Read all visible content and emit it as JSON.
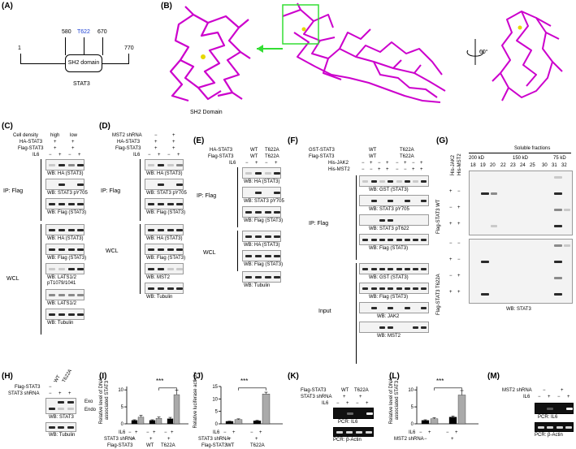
{
  "panels": {
    "A": "(A)",
    "B": "(B)",
    "C": "(C)",
    "D": "(D)",
    "E": "(E)",
    "F": "(F)",
    "G": "(G)",
    "H": "(H)",
    "I": "(I)",
    "J": "(J)",
    "K": "(K)",
    "L": "(L)",
    "M": "(M)"
  },
  "panelA": {
    "ticks": [
      "1",
      "580",
      "T622",
      "670",
      "770"
    ],
    "domain": "SH2 domain",
    "protein": "STAT3",
    "colors": {
      "T622": "#1a3fd4"
    }
  },
  "panelB": {
    "zoom_label": "SH2 Domain",
    "rotation": "60°",
    "colors": {
      "structure": "#cc00cc",
      "zoom_box": "#33dd33",
      "residue": "#e6d800"
    }
  },
  "panelC": {
    "header_rows": [
      {
        "label": "Cell density",
        "values": [
          "high",
          "low"
        ]
      },
      {
        "label": "HA-STAT3",
        "values": [
          "+",
          "+"
        ]
      },
      {
        "label": "Flag-STAT3",
        "values": [
          "+",
          "+"
        ]
      },
      {
        "label": "IL6",
        "values": [
          "−",
          "+",
          "−",
          "+"
        ]
      }
    ],
    "ip": "IP: Flag",
    "wcl": "WCL",
    "blots": [
      "WB: HA (STAT3)",
      "WB: STAT3 pY705",
      "WB: Flag (STAT3)",
      "WB: HA (STAT3)",
      "WB: Flag (STAT3)",
      "WB: LATS1/2 pT1079/1041",
      "WB: LATS1/2",
      "WB: Tubulin"
    ]
  },
  "panelD": {
    "header_rows": [
      {
        "label": "MST2 shRNA",
        "values": [
          "−",
          "+"
        ]
      },
      {
        "label": "HA-STAT3",
        "values": [
          "+",
          "+"
        ]
      },
      {
        "label": "Flag-STAT3",
        "values": [
          "+",
          "+"
        ]
      },
      {
        "label": "IL6",
        "values": [
          "−",
          "+",
          "−",
          "+"
        ]
      }
    ],
    "ip": "IP: Flag",
    "wcl": "WCL",
    "blots": [
      "WB: HA (STAT3)",
      "WB: STAT3 pY705",
      "WB: Flag (STAT3)",
      "WB: HA (STAT3)",
      "WB: Flag (STAT3)",
      "WB: MST2",
      "WB: Tubulin"
    ]
  },
  "panelE": {
    "header_rows": [
      {
        "label": "HA-STAT3",
        "values": [
          "WT",
          "T622A"
        ]
      },
      {
        "label": "Flag-STAT3",
        "values": [
          "WT",
          "T622A"
        ]
      },
      {
        "label": "IL6",
        "values": [
          "−",
          "+",
          "−",
          "+"
        ]
      }
    ],
    "ip": "IP: Flag",
    "wcl": "WCL",
    "blots": [
      "WB: HA (STAT3)",
      "WB: STAT3 pY705",
      "WB: Flag (STAT3)",
      "WB: HA (STAT3)",
      "WB: Flag (STAT3)",
      "WB: Tubulin"
    ]
  },
  "panelF": {
    "header_rows": [
      {
        "label": "GST-STAT3",
        "values": [
          "WT",
          "T622A"
        ]
      },
      {
        "label": "Flag-STAT3",
        "values": [
          "WT",
          "T622A"
        ]
      },
      {
        "label": "His-JAK2",
        "values": [
          "−",
          "+",
          "−",
          "+",
          "−",
          "+",
          "−",
          "+"
        ]
      },
      {
        "label": "His-MST2",
        "values": [
          "−",
          "−",
          "+",
          "+",
          "−",
          "−",
          "+",
          "+"
        ]
      }
    ],
    "ip": "IP: Flag",
    "input": "Input",
    "blots": [
      "WB: GST (STAT3)",
      "WB: STAT3 pY705",
      "WB: STAT3 pT622",
      "WB: Flag (STAT3)",
      "WB: GST (STAT3)",
      "WB: Flag (STAT3)",
      "WB: JAK2",
      "WB: MST2"
    ]
  },
  "panelG": {
    "col_headers": [
      "His-JAK2",
      "His-MST2"
    ],
    "title": "Soluble fractions",
    "markers": [
      "200 kD",
      "150 kD",
      "75 kD"
    ],
    "fractions": [
      "18",
      "19",
      "20",
      "22",
      "23",
      "24",
      "25",
      "30",
      "31",
      "32"
    ],
    "group_wt": "Flag-STAT3 WT",
    "group_mut": "Flag-STAT3 T622A",
    "row_signs": [
      [
        "−",
        "−"
      ],
      [
        "+",
        "−"
      ],
      [
        "−",
        "+"
      ],
      [
        "+",
        "+"
      ],
      [
        "−",
        "−"
      ],
      [
        "+",
        "−"
      ],
      [
        "−",
        "+"
      ],
      [
        "+",
        "+"
      ]
    ],
    "blot": "WB: STAT3"
  },
  "panelH": {
    "header_rows": [
      {
        "label": "Flag-STAT3",
        "values": [
          "−",
          "WT",
          "T622A"
        ]
      },
      {
        "label": "STAT3 shRNA",
        "values": [
          "−",
          "+",
          "+"
        ]
      }
    ],
    "exo": "Exo",
    "endo": "Endo",
    "blots": [
      "WB: STAT3",
      "WB: Tubulin"
    ]
  },
  "panelI": {
    "sig": "***",
    "xrows": [
      {
        "label": "IL6",
        "values": [
          "−",
          "+",
          "−",
          "+",
          "−",
          "+"
        ]
      },
      {
        "label": "STAT3 shRNA",
        "values": [
          "+",
          "+",
          "+"
        ]
      },
      {
        "label": "Flag-STAT3",
        "values": [
          "WT",
          "T622A"
        ]
      }
    ]
  },
  "panelJ": {
    "sig": "***",
    "xrows": [
      {
        "label": "IL6",
        "values": [
          "−",
          "+",
          "−",
          "+"
        ]
      },
      {
        "label": "STAT3 shRNA",
        "values": [
          "+",
          "+"
        ]
      },
      {
        "label": "Flag-STAT3",
        "values": [
          "WT",
          "T622A"
        ]
      }
    ]
  },
  "panelK": {
    "header_rows": [
      {
        "label": "Flag-STAT3",
        "values": [
          "WT",
          "T622A"
        ]
      },
      {
        "label": "STAT3 shRNA",
        "values": [
          "+",
          "+"
        ]
      },
      {
        "label": "IL6",
        "values": [
          "−",
          "+",
          "−",
          "+"
        ]
      }
    ],
    "blots": [
      "PCR: IL6",
      "PCR: β-Actin"
    ]
  },
  "panelL": {
    "sig": "***",
    "xrows": [
      {
        "label": "IL6",
        "values": [
          "−",
          "+",
          "−",
          "+"
        ]
      },
      {
        "label": "MST2 shRNA",
        "values": [
          "−",
          "+"
        ]
      }
    ]
  },
  "panelM": {
    "header_rows": [
      {
        "label": "MST2 shRNA",
        "values": [
          "−",
          "+"
        ]
      },
      {
        "label": "IL6",
        "values": [
          "−",
          "+",
          "−",
          "+"
        ]
      }
    ],
    "blots": [
      "PCR: IL6",
      "PCR: β-Actin"
    ]
  },
  "chart_data": [
    {
      "type": "bar",
      "panel": "I",
      "categories": [
        "IL6 −",
        "IL6 +",
        "IL6 −",
        "IL6 +",
        "IL6 −",
        "IL6 +"
      ],
      "values": [
        1.0,
        2.0,
        1.0,
        1.6,
        1.5,
        8.6
      ],
      "errors": [
        0.2,
        0.5,
        0.2,
        0.4,
        0.4,
        1.3
      ],
      "colors": [
        "#000000",
        "#aaaaaa",
        "#000000",
        "#aaaaaa",
        "#000000",
        "#aaaaaa"
      ],
      "ylabel": "Relative level of DNA-associated STAT3",
      "yticks": [
        0,
        5,
        10
      ],
      "ylim": [
        0,
        11
      ]
    },
    {
      "type": "bar",
      "panel": "J",
      "categories": [
        "IL6 −",
        "IL6 +",
        "IL6 −",
        "IL6 +"
      ],
      "values": [
        1.0,
        1.7,
        1.2,
        12.0
      ],
      "errors": [
        0.1,
        0.3,
        0.2,
        0.7
      ],
      "colors": [
        "#000000",
        "#aaaaaa",
        "#000000",
        "#aaaaaa"
      ],
      "ylabel": "Relative luciferase activity",
      "yticks": [
        0,
        5,
        10,
        15
      ],
      "ylim": [
        0,
        15
      ]
    },
    {
      "type": "bar",
      "panel": "L",
      "categories": [
        "IL6 −",
        "IL6 +",
        "IL6 −",
        "IL6 +"
      ],
      "values": [
        1.0,
        1.5,
        2.0,
        8.5
      ],
      "errors": [
        0.2,
        0.3,
        0.3,
        1.3
      ],
      "colors": [
        "#000000",
        "#aaaaaa",
        "#000000",
        "#aaaaaa"
      ],
      "ylabel": "Relative level of DNA-associated STAT3",
      "yticks": [
        0,
        5,
        10
      ],
      "ylim": [
        0,
        11
      ]
    }
  ]
}
